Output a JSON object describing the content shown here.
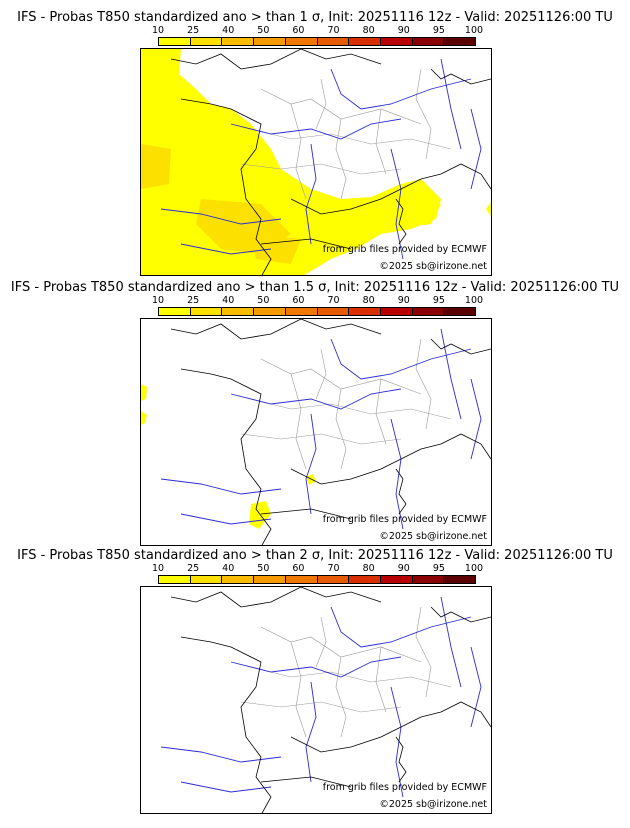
{
  "colorscale": {
    "ticks": [
      "10",
      "25",
      "40",
      "50",
      "60",
      "70",
      "80",
      "90",
      "95",
      "100"
    ],
    "colors": [
      "#ffff00",
      "#fce000",
      "#f8bc00",
      "#f59a00",
      "#f07800",
      "#e85a00",
      "#d82e00",
      "#b80000",
      "#8a0000",
      "#5a0000"
    ]
  },
  "panels": [
    {
      "title": "IFS - Probas T850  standardized ano > than 1 σ, Init: 20251116 12z - Valid: 20251126:00 TU",
      "credit_grib": "from grib files provided by ECMWF",
      "credit_copyright": "©2025 sb@irizone.net"
    },
    {
      "title": "IFS - Probas T850  standardized ano > than 1.5 σ, Init: 20251116 12z - Valid: 20251126:00 TU",
      "credit_grib": "from grib files provided by ECMWF",
      "credit_copyright": "©2025 sb@irizone.net"
    },
    {
      "title": "IFS - Probas T850  standardized ano > than 2 σ, Init: 20251116 12z - Valid: 20251126:00 TU",
      "credit_grib": "from grib files provided by ECMWF",
      "credit_copyright": "©2025 sb@irizone.net"
    }
  ],
  "colors": {
    "coast": "#000000",
    "rivers": "#2b2bd6",
    "regions": "#9a9a9a",
    "prob_fill_low": "#ffff00",
    "prob_fill_mid": "#fce000"
  }
}
